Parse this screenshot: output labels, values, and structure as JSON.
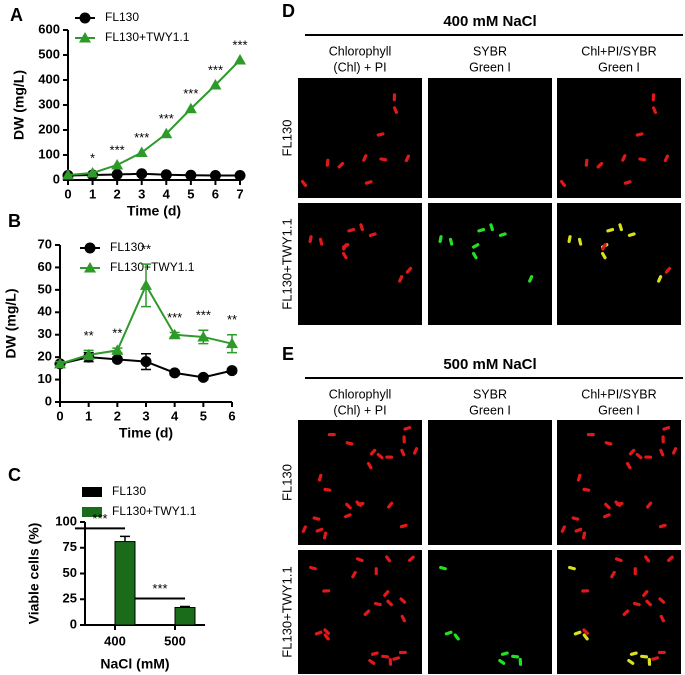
{
  "chart_data": [
    {
      "type": "line",
      "label": "A",
      "x_label": "Time (d)",
      "y_label": "DW (mg/L)",
      "x": [
        0,
        1,
        2,
        3,
        4,
        5,
        6,
        7
      ],
      "xlim": [
        0,
        7
      ],
      "xticks": [
        0,
        1,
        2,
        3,
        4,
        5,
        6,
        7
      ],
      "ylim": [
        0,
        600
      ],
      "yticks": [
        0,
        100,
        200,
        300,
        400,
        500,
        600
      ],
      "series": [
        {
          "name": "FL130",
          "color": "#000000",
          "marker": "circle",
          "values": [
            18,
            20,
            22,
            25,
            21,
            19,
            18,
            18
          ]
        },
        {
          "name": "FL130+TWY1.1",
          "color": "#2e9a2a",
          "marker": "triangle",
          "values": [
            20,
            28,
            60,
            110,
            185,
            285,
            380,
            480
          ]
        }
      ],
      "significance": [
        null,
        "*",
        "***",
        "***",
        "***",
        "***",
        "***",
        "***"
      ]
    },
    {
      "type": "line",
      "label": "B",
      "x_label": "Time (d)",
      "y_label": "DW (mg/L)",
      "x": [
        0,
        1,
        2,
        3,
        4,
        5,
        6
      ],
      "xlim": [
        0,
        6
      ],
      "xticks": [
        0,
        1,
        2,
        3,
        4,
        5,
        6
      ],
      "ylim": [
        0,
        70
      ],
      "yticks": [
        0,
        10,
        20,
        30,
        40,
        50,
        60,
        70
      ],
      "series": [
        {
          "name": "FL130",
          "color": "#000000",
          "marker": "circle",
          "values": [
            17,
            20,
            19,
            18,
            13,
            11,
            14
          ],
          "errors": [
            1,
            2,
            1,
            3.5,
            1,
            1,
            1
          ]
        },
        {
          "name": "FL130+TWY1.1",
          "color": "#2e9a2a",
          "marker": "triangle",
          "values": [
            17,
            21,
            23,
            52,
            30,
            29,
            26
          ],
          "errors": [
            1,
            2,
            1,
            9.5,
            1,
            3,
            4
          ]
        }
      ],
      "significance": [
        null,
        "**",
        "**",
        "**",
        "***",
        "***",
        "**"
      ]
    },
    {
      "type": "bar",
      "label": "C",
      "x_label": "NaCl (mM)",
      "y_label": "Viable cells (%)",
      "categories": [
        "400",
        "500"
      ],
      "ylim": [
        0,
        100
      ],
      "yticks": [
        0,
        25,
        50,
        75,
        100
      ],
      "series": [
        {
          "name": "FL130",
          "color": "#000000",
          "values": [
            0,
            0
          ],
          "errors": [
            0,
            0
          ]
        },
        {
          "name": "FL130+TWY1.1",
          "color": "#1a6b1a",
          "values": [
            81,
            17
          ],
          "errors": [
            5,
            1
          ]
        }
      ],
      "significance": [
        "***",
        "***"
      ]
    }
  ],
  "panels": [
    {
      "label": "D",
      "title": "400 mM NaCl",
      "columns": [
        [
          "Chlorophyll",
          "(Chl) + PI"
        ],
        [
          "SYBR",
          "Green I"
        ],
        [
          "Chl+PI/SYBR",
          "Green I"
        ]
      ],
      "rows": [
        "FL130",
        "FL130+TWY1.1"
      ]
    },
    {
      "label": "E",
      "title": "500 mM NaCl",
      "columns": [
        [
          "Chlorophyll",
          "(Chl) + PI"
        ],
        [
          "SYBR",
          "Green I"
        ],
        [
          "Chl+PI/SYBR",
          "Green I"
        ]
      ],
      "rows": [
        "FL130",
        "FL130+TWY1.1"
      ]
    }
  ]
}
